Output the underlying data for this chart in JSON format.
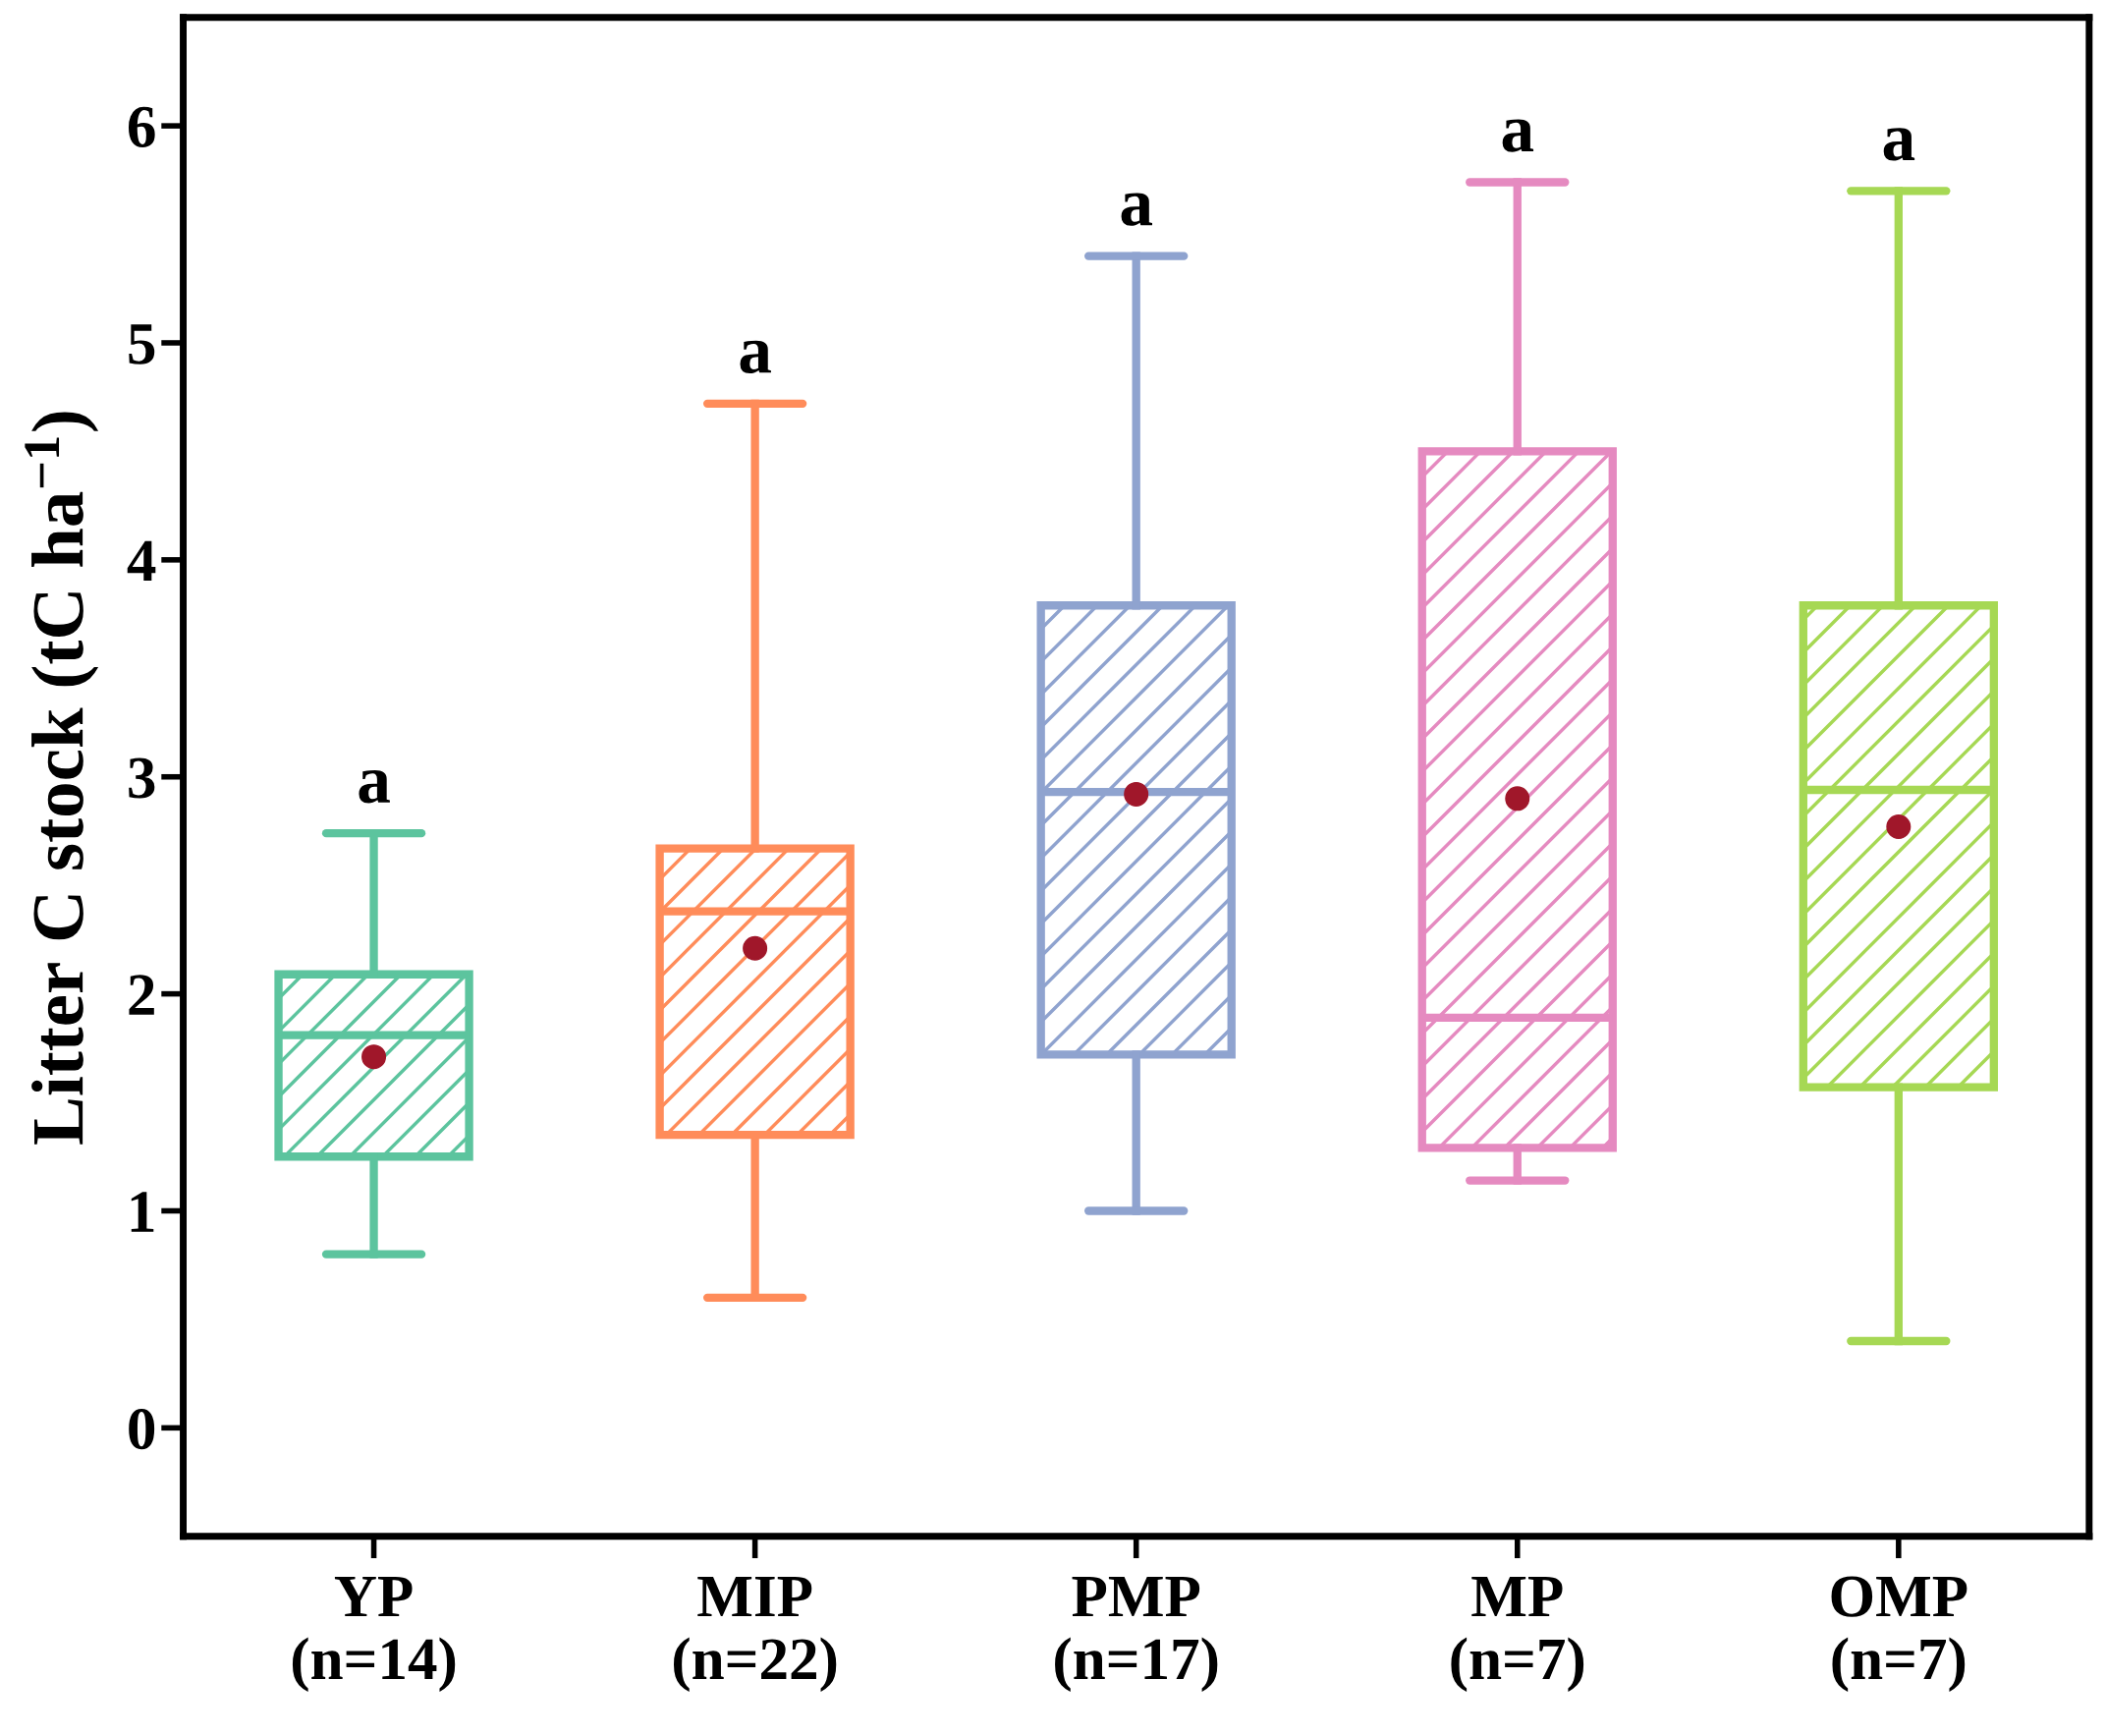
{
  "chart_data": {
    "type": "box",
    "ylabel": "Litter C stock (tC ha$^{−1}$)",
    "categories": [
      "YP\n(n=14)",
      "MIP\n(n=22)",
      "PMP\n(n=17)",
      "MP\n(n=7)",
      "OMP\n(n=7)"
    ],
    "colors": [
      "#5cc49e",
      "#ff8c5a",
      "#8fa3cf",
      "#e58ac0",
      "#a6d854"
    ],
    "boxes": [
      {
        "low": 0.8,
        "q1": 1.25,
        "median": 1.81,
        "q3": 2.09,
        "high": 2.74,
        "mean": 1.71
      },
      {
        "low": 0.6,
        "q1": 1.35,
        "median": 2.38,
        "q3": 2.67,
        "high": 4.72,
        "mean": 2.21
      },
      {
        "low": 1.0,
        "q1": 1.72,
        "median": 2.93,
        "q3": 3.79,
        "high": 5.4,
        "mean": 2.92
      },
      {
        "low": 1.14,
        "q1": 1.29,
        "median": 1.89,
        "q3": 4.5,
        "high": 5.74,
        "mean": 2.9
      },
      {
        "low": 0.4,
        "q1": 1.57,
        "median": 2.94,
        "q3": 3.79,
        "high": 5.7,
        "mean": 2.77
      }
    ],
    "annotations": [
      {
        "text": "a",
        "x": "YP\n(n=14)",
        "y": 2.74
      },
      {
        "text": "a",
        "x": "MIP\n(n=22)",
        "y": 4.72
      },
      {
        "text": "a",
        "x": "PMP\n(n=17)",
        "y": 5.4
      },
      {
        "text": "a",
        "x": "MP\n(n=7)",
        "y": 5.74
      },
      {
        "text": "a",
        "x": "OMP\n(n=7)",
        "y": 5.7
      }
    ],
    "ylim": [
      -0.5,
      6.5
    ],
    "yticks": [
      0,
      1,
      2,
      3,
      4,
      5,
      6
    ],
    "grid": false
  }
}
